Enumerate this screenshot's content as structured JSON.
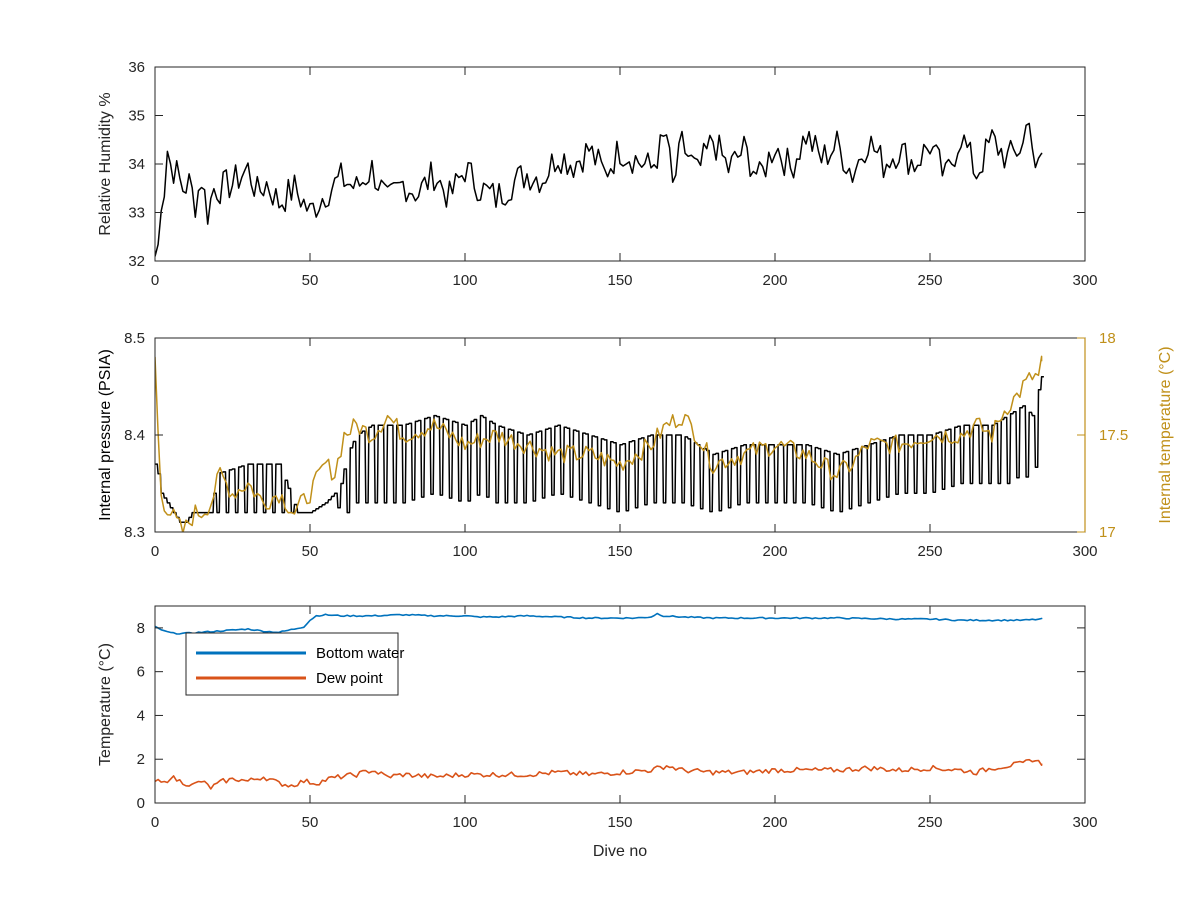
{
  "chart_data": [
    {
      "type": "line",
      "title": "",
      "xlabel": "",
      "ylabel": "Relative Humidity %",
      "xlim": [
        0,
        300
      ],
      "ylim": [
        32,
        36
      ],
      "xticks": [
        "0",
        "50",
        "100",
        "150",
        "200",
        "250",
        "300"
      ],
      "yticks": [
        "32",
        "33",
        "34",
        "35",
        "36"
      ],
      "grid": false,
      "series": [
        {
          "color": "#000000",
          "x": [
            0,
            1,
            2,
            3,
            4,
            5,
            7,
            9,
            11,
            13,
            15,
            17,
            19,
            21,
            25,
            30,
            33,
            36,
            40,
            45,
            50,
            55,
            60,
            65,
            70,
            75,
            80,
            85,
            90,
            95,
            100,
            105,
            110,
            115,
            120,
            125,
            130,
            135,
            140,
            145,
            150,
            155,
            160,
            165,
            167,
            170,
            175,
            180,
            185,
            190,
            195,
            200,
            205,
            210,
            215,
            220,
            225,
            230,
            235,
            240,
            245,
            250,
            255,
            260,
            265,
            270,
            275,
            280,
            282,
            284,
            286
          ],
          "values": [
            32.1,
            32.3,
            33.3,
            33.5,
            34.3,
            34.0,
            33.8,
            33.5,
            33.6,
            33.2,
            33.7,
            33.0,
            33.5,
            33.5,
            33.6,
            33.9,
            33.4,
            33.6,
            33.2,
            33.5,
            33.0,
            33.4,
            33.7,
            33.5,
            33.9,
            33.2,
            33.6,
            33.4,
            33.8,
            33.3,
            33.9,
            33.5,
            33.3,
            33.6,
            33.8,
            33.7,
            34.2,
            34.0,
            34.3,
            33.8,
            34.3,
            34.1,
            33.9,
            34.6,
            33.5,
            34.4,
            33.8,
            34.5,
            33.9,
            34.3,
            33.7,
            34.4,
            33.9,
            34.6,
            34.1,
            34.4,
            33.8,
            34.5,
            34.0,
            34.3,
            34.0,
            34.4,
            33.7,
            34.6,
            33.8,
            34.5,
            34.1,
            34.4,
            35.1,
            33.7,
            34.2
          ]
        }
      ]
    },
    {
      "type": "line",
      "title": "",
      "xlabel": "",
      "ylabel": "Internal pressure (PSIA)",
      "ylabel_right": "Internal temperature (°C)",
      "xlim": [
        0,
        300
      ],
      "ylim": [
        8.3,
        8.5
      ],
      "ylim_right": [
        17,
        18
      ],
      "xticks": [
        "0",
        "50",
        "100",
        "150",
        "200",
        "250",
        "300"
      ],
      "yticks": [
        "8.3",
        "8.4",
        "8.5"
      ],
      "yticks_right": [
        "17",
        "17.5",
        "18"
      ],
      "grid": false,
      "series": [
        {
          "axis": "left",
          "color": "#000000",
          "x": [
            0,
            1,
            2,
            4,
            6,
            8,
            10,
            12,
            15,
            18,
            20,
            30,
            40,
            46,
            50,
            55,
            58,
            60,
            62,
            65,
            70,
            80,
            90,
            100,
            105,
            110,
            120,
            130,
            140,
            150,
            160,
            170,
            180,
            190,
            200,
            210,
            220,
            230,
            240,
            250,
            260,
            270,
            275,
            280,
            283,
            286
          ],
          "values": [
            8.37,
            8.36,
            8.34,
            8.33,
            8.32,
            8.31,
            8.31,
            8.32,
            8.32,
            8.32,
            8.36,
            8.37,
            8.37,
            8.32,
            8.32,
            8.33,
            8.34,
            8.35,
            8.38,
            8.4,
            8.41,
            8.41,
            8.42,
            8.41,
            8.42,
            8.41,
            8.4,
            8.41,
            8.4,
            8.39,
            8.4,
            8.4,
            8.38,
            8.39,
            8.39,
            8.39,
            8.38,
            8.39,
            8.4,
            8.4,
            8.41,
            8.41,
            8.42,
            8.43,
            8.42,
            8.46
          ],
          "oscillation": [
            0,
            0,
            0,
            0,
            0,
            0,
            0,
            0,
            0,
            0,
            0.04,
            0.05,
            0.05,
            0,
            0,
            0,
            0,
            0.04,
            0.06,
            0.07,
            0.08,
            0.08,
            0.08,
            0.08,
            0.08,
            0.08,
            0.07,
            0.07,
            0.07,
            0.07,
            0.07,
            0.07,
            0.06,
            0.06,
            0.06,
            0.06,
            0.06,
            0.06,
            0.06,
            0.06,
            0.06,
            0.06,
            0.07,
            0.07,
            0.07,
            0.06
          ]
        },
        {
          "axis": "right",
          "color": "#c0901a",
          "x": [
            0,
            1,
            2,
            3,
            5,
            7,
            9,
            11,
            13,
            15,
            18,
            21,
            25,
            30,
            35,
            40,
            45,
            50,
            55,
            58,
            61,
            65,
            70,
            75,
            80,
            90,
            100,
            110,
            120,
            130,
            140,
            150,
            155,
            160,
            165,
            170,
            175,
            180,
            190,
            200,
            210,
            220,
            225,
            230,
            240,
            250,
            260,
            265,
            270,
            273,
            275,
            278,
            280,
            283,
            285,
            286
          ],
          "values": [
            17.9,
            17.5,
            17.2,
            17.15,
            17.1,
            17.05,
            17.0,
            17.05,
            17.1,
            17.1,
            17.15,
            17.3,
            17.2,
            17.25,
            17.15,
            17.2,
            17.1,
            17.2,
            17.35,
            17.3,
            17.5,
            17.55,
            17.5,
            17.6,
            17.5,
            17.55,
            17.45,
            17.5,
            17.45,
            17.4,
            17.4,
            17.35,
            17.4,
            17.45,
            17.55,
            17.6,
            17.5,
            17.35,
            17.4,
            17.45,
            17.4,
            17.3,
            17.35,
            17.45,
            17.45,
            17.5,
            17.5,
            17.55,
            17.5,
            17.6,
            17.65,
            17.7,
            17.75,
            17.8,
            17.8,
            17.88
          ]
        }
      ]
    },
    {
      "type": "line",
      "title": "",
      "xlabel": "Dive no",
      "ylabel": "Temperature (°C)",
      "xlim": [
        0,
        300
      ],
      "ylim": [
        0,
        9
      ],
      "xticks": [
        "0",
        "50",
        "100",
        "150",
        "200",
        "250",
        "300"
      ],
      "yticks": [
        "0",
        "2",
        "4",
        "6",
        "8"
      ],
      "grid": false,
      "legend_position": "top-left",
      "series": [
        {
          "name": "Bottom water",
          "color": "#0072bd",
          "x": [
            0,
            3,
            6,
            10,
            15,
            20,
            25,
            30,
            35,
            40,
            45,
            48,
            50,
            52,
            55,
            60,
            70,
            80,
            90,
            100,
            104,
            110,
            120,
            130,
            140,
            150,
            155,
            160,
            162,
            164,
            170,
            180,
            190,
            200,
            220,
            240,
            250,
            260,
            270,
            280,
            286
          ],
          "values": [
            8.05,
            7.85,
            7.75,
            7.75,
            7.8,
            7.85,
            7.9,
            7.95,
            7.85,
            7.8,
            7.95,
            8.05,
            8.35,
            8.55,
            8.6,
            8.55,
            8.55,
            8.6,
            8.55,
            8.55,
            8.5,
            8.5,
            8.55,
            8.5,
            8.45,
            8.45,
            8.45,
            8.5,
            8.65,
            8.55,
            8.5,
            8.45,
            8.45,
            8.45,
            8.45,
            8.4,
            8.4,
            8.35,
            8.35,
            8.35,
            8.4
          ]
        },
        {
          "name": "Dew point",
          "color": "#d95319",
          "x": [
            0,
            3,
            5,
            8,
            12,
            15,
            18,
            22,
            26,
            30,
            35,
            40,
            44,
            48,
            52,
            56,
            60,
            65,
            70,
            75,
            80,
            90,
            100,
            110,
            120,
            130,
            140,
            150,
            160,
            165,
            170,
            180,
            190,
            200,
            210,
            220,
            230,
            240,
            250,
            260,
            265,
            270,
            275,
            280,
            283,
            286
          ],
          "values": [
            1.0,
            0.9,
            1.2,
            1.0,
            0.8,
            1.0,
            0.7,
            1.0,
            1.1,
            1.0,
            1.2,
            0.9,
            0.8,
            1.0,
            0.9,
            1.1,
            1.2,
            1.3,
            1.5,
            1.2,
            1.3,
            1.2,
            1.3,
            1.3,
            1.3,
            1.4,
            1.3,
            1.4,
            1.5,
            1.7,
            1.5,
            1.4,
            1.4,
            1.5,
            1.5,
            1.5,
            1.6,
            1.5,
            1.6,
            1.5,
            1.4,
            1.6,
            1.7,
            1.8,
            2.0,
            1.8
          ]
        }
      ]
    }
  ]
}
